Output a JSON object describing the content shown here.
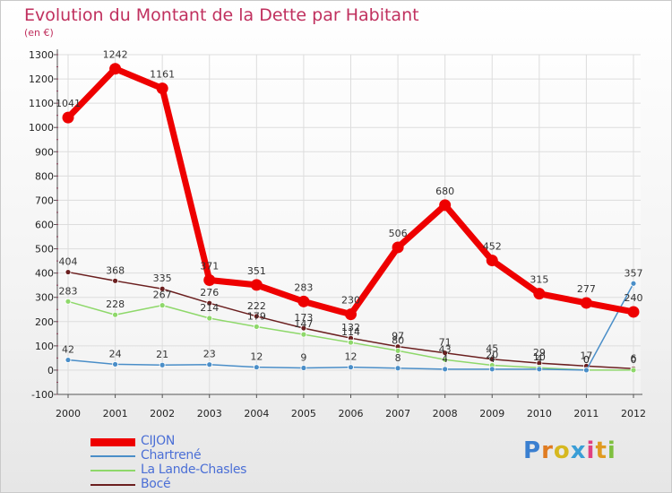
{
  "header": {
    "title": "Evolution du Montant de la Dette par Habitant",
    "unit": "(en €)"
  },
  "logo": {
    "text": "Proxiti"
  },
  "colors": {
    "title": "#c0305e",
    "legend_text": "#4b6fd6",
    "axis": "#555555",
    "grid": "#dddddd"
  },
  "chart_data": {
    "type": "line",
    "title": "Evolution du Montant de la Dette par Habitant",
    "ylabel": "(en €)",
    "xlabel": "",
    "x": [
      "2000",
      "2001",
      "2002",
      "2003",
      "2004",
      "2005",
      "2006",
      "2007",
      "2008",
      "2009",
      "2010",
      "2011",
      "2012"
    ],
    "ylim": [
      -100,
      1300
    ],
    "yticks": [
      -100,
      0,
      100,
      200,
      300,
      400,
      500,
      600,
      700,
      800,
      900,
      1000,
      1100,
      1200,
      1300
    ],
    "grid": true,
    "legend_position": "bottom-left",
    "series": [
      {
        "name": "CIJON",
        "color": "#ee0000",
        "values": [
          1041,
          1242,
          1161,
          371,
          351,
          283,
          230,
          506,
          680,
          452,
          315,
          277,
          240
        ]
      },
      {
        "name": "Chartrené",
        "color": "#4a8ec8",
        "values": [
          42,
          24,
          21,
          23,
          12,
          9,
          12,
          8,
          4,
          4,
          4,
          0,
          357
        ]
      },
      {
        "name": "La Lande-Chasles",
        "color": "#8ed86a",
        "values": [
          283,
          228,
          267,
          214,
          179,
          147,
          114,
          80,
          43,
          20,
          10,
          0,
          0
        ]
      },
      {
        "name": "Bocé",
        "color": "#6b1f1f",
        "values": [
          404,
          368,
          335,
          276,
          222,
          173,
          132,
          97,
          71,
          45,
          29,
          17,
          6
        ]
      }
    ]
  }
}
